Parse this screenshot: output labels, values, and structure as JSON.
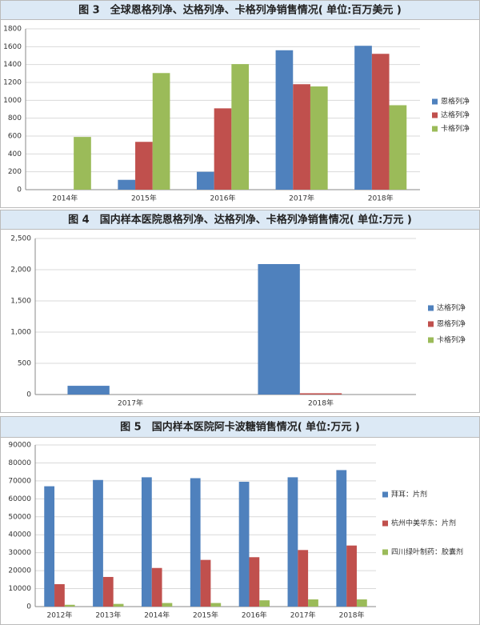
{
  "chart_data": [
    {
      "type": "bar",
      "title": "图 3　全球恩格列净、达格列净、卡格列净销售情况( 单位:百万美元 )",
      "categories": [
        "2014年",
        "2015年",
        "2016年",
        "2017年",
        "2018年"
      ],
      "series": [
        {
          "name": "恩格列净",
          "color": "#4f81bd",
          "values": [
            0,
            110,
            200,
            1560,
            1610
          ]
        },
        {
          "name": "达格列净",
          "color": "#c0504d",
          "values": [
            0,
            535,
            910,
            1180,
            1520
          ]
        },
        {
          "name": "卡格列净",
          "color": "#9bbb59",
          "values": [
            590,
            1305,
            1405,
            1155,
            945
          ]
        }
      ],
      "ylim": [
        0,
        1800
      ],
      "yticks": [
        0,
        200,
        400,
        600,
        800,
        1000,
        1200,
        1400,
        1600,
        1800
      ],
      "grid": true,
      "legend": "right"
    },
    {
      "type": "bar",
      "title": "图 4　国内样本医院恩格列净、达格列净、卡格列净销售情况( 单位:万元 )",
      "categories": [
        "2017年",
        "2018年"
      ],
      "series": [
        {
          "name": "达格列净",
          "color": "#4f81bd",
          "values": [
            140,
            2090
          ]
        },
        {
          "name": "恩格列净",
          "color": "#c0504d",
          "values": [
            0,
            20
          ]
        },
        {
          "name": "卡格列净",
          "color": "#9bbb59",
          "values": [
            0,
            0
          ]
        }
      ],
      "ylim": [
        0,
        2500
      ],
      "yticks": [
        0,
        500,
        {
          "value": 1000,
          "label": "1,000"
        },
        {
          "value": 1500,
          "label": "1,500"
        },
        {
          "value": 2000,
          "label": "2,000"
        },
        {
          "value": 2500,
          "label": "2,500"
        }
      ],
      "grid": true,
      "legend": "right"
    },
    {
      "type": "bar",
      "title": "图 5　国内样本医院阿卡波糖销售情况( 单位:万元 )",
      "categories": [
        "2012年",
        "2013年",
        "2014年",
        "2015年",
        "2016年",
        "2017年",
        "2018年"
      ],
      "series": [
        {
          "name": "拜耳：片剂",
          "color": "#4f81bd",
          "values": [
            67000,
            70500,
            72000,
            71500,
            69500,
            72000,
            76000
          ]
        },
        {
          "name": "杭州中美华东：片剂",
          "color": "#c0504d",
          "values": [
            12500,
            16500,
            21500,
            26000,
            27500,
            31500,
            34000
          ]
        },
        {
          "name": "四川绿叶制药：胶囊剂",
          "color": "#9bbb59",
          "values": [
            1000,
            1500,
            2000,
            2000,
            3500,
            4000,
            4000
          ]
        }
      ],
      "ylim": [
        0,
        90000
      ],
      "yticks": [
        0,
        10000,
        20000,
        30000,
        40000,
        50000,
        60000,
        70000,
        80000,
        90000
      ],
      "grid": true,
      "legend": "right"
    }
  ]
}
